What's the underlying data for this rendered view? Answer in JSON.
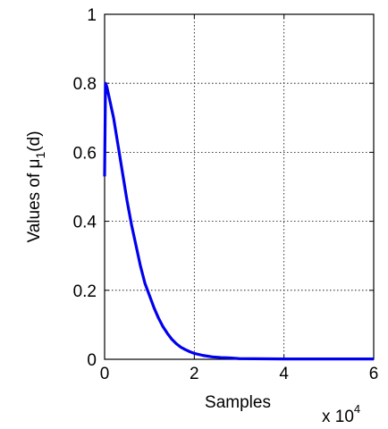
{
  "chart_data": {
    "type": "line",
    "title": "",
    "xlabel": "Samples",
    "ylabel_main": "Values of μ",
    "ylabel_sub": "1",
    "ylabel_tail": "(d)",
    "x_multiplier": "x 10",
    "x_multiplier_exp": "4",
    "xlim": [
      0,
      6
    ],
    "ylim": [
      0,
      1
    ],
    "x_ticks": [
      0,
      2,
      4,
      6
    ],
    "x_tick_labels": [
      "0",
      "2",
      "4",
      "6"
    ],
    "y_ticks": [
      0,
      0.2,
      0.4,
      0.6,
      0.8,
      1
    ],
    "y_tick_labels": [
      "0",
      "0.2",
      "0.4",
      "0.6",
      "0.8",
      "1"
    ],
    "grid": true,
    "series": [
      {
        "color": "#0000ee",
        "x": [
          0,
          0.02,
          0.05,
          0.1,
          0.2,
          0.3,
          0.4,
          0.5,
          0.6,
          0.7,
          0.8,
          0.9,
          1.0,
          1.1,
          1.2,
          1.3,
          1.4,
          1.5,
          1.6,
          1.7,
          1.8,
          1.9,
          2.0,
          2.2,
          2.4,
          2.6,
          2.8,
          2.9,
          3.0,
          4.0,
          5.0,
          6.0
        ],
        "y": [
          0.53,
          0.8,
          0.79,
          0.76,
          0.7,
          0.62,
          0.54,
          0.46,
          0.39,
          0.33,
          0.27,
          0.22,
          0.185,
          0.15,
          0.12,
          0.095,
          0.075,
          0.058,
          0.045,
          0.035,
          0.028,
          0.022,
          0.017,
          0.011,
          0.007,
          0.005,
          0.004,
          0.003,
          0.002,
          0.001,
          0.001,
          0.001
        ]
      }
    ]
  }
}
